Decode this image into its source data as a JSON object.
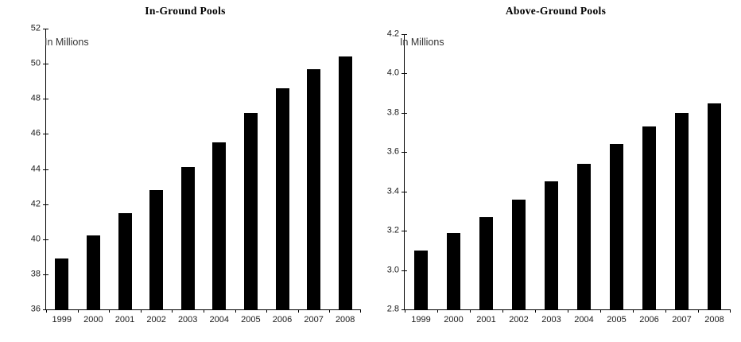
{
  "figure": {
    "background": "#ffffff"
  },
  "chart_data": [
    {
      "type": "bar",
      "title": "In-Ground Pools",
      "annotation": "In Millions",
      "categories": [
        "1999",
        "2000",
        "2001",
        "2002",
        "2003",
        "2004",
        "2005",
        "2006",
        "2007",
        "2008"
      ],
      "values": [
        38.9,
        40.2,
        41.5,
        42.8,
        44.1,
        45.5,
        47.2,
        48.6,
        49.7,
        50.4
      ],
      "ylim": [
        36,
        52
      ],
      "y_ticks": [
        "52",
        "50",
        "48",
        "46",
        "44",
        "42",
        "40",
        "38",
        "36"
      ],
      "xlabel": "",
      "ylabel": "",
      "legend": "none",
      "grid": false,
      "bar_color": "#000000"
    },
    {
      "type": "bar",
      "title": "Above-Ground Pools",
      "annotation": "In Millions",
      "categories": [
        "1999",
        "2000",
        "2001",
        "2002",
        "2003",
        "2004",
        "2005",
        "2006",
        "2007",
        "2008"
      ],
      "values": [
        3.1,
        3.19,
        3.27,
        3.36,
        3.45,
        3.54,
        3.64,
        3.73,
        3.8,
        3.85
      ],
      "ylim": [
        2.8,
        4.2
      ],
      "y_ticks": [
        "4.2",
        "4.0",
        "3.8",
        "3.6",
        "3.4",
        "3.2",
        "3.0",
        "2.8"
      ],
      "xlabel": "",
      "ylabel": "",
      "legend": "none",
      "grid": false,
      "bar_color": "#000000"
    }
  ]
}
